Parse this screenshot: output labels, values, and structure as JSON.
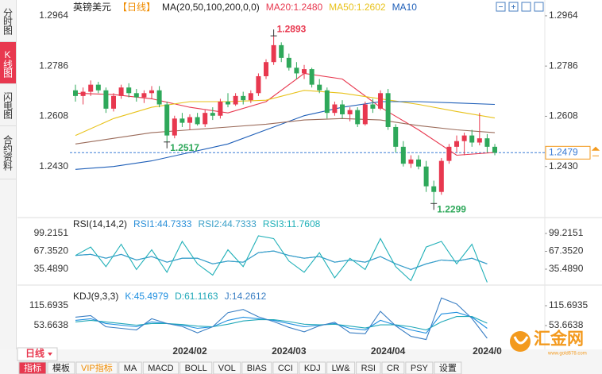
{
  "sidebar": [
    "分时图",
    "K线图",
    "闪电图",
    "合约资料"
  ],
  "chart_data": [
    {
      "type": "candlestick",
      "symbol": "英镑美元",
      "period": "【日线】",
      "indicator": "MA(20,50,100,200,0,0)",
      "up_color": "#e8384f",
      "down_color": "#2ea85a",
      "ohlc": [
        [
          1.27,
          1.272,
          1.266,
          1.268
        ],
        [
          1.268,
          1.271,
          1.265,
          1.2695
        ],
        [
          1.2695,
          1.2735,
          1.268,
          1.272
        ],
        [
          1.272,
          1.273,
          1.269,
          1.27
        ],
        [
          1.27,
          1.271,
          1.262,
          1.2635
        ],
        [
          1.2635,
          1.269,
          1.2625,
          1.268
        ],
        [
          1.268,
          1.272,
          1.267,
          1.271
        ],
        [
          1.271,
          1.2725,
          1.2675,
          1.269
        ],
        [
          1.269,
          1.2705,
          1.266,
          1.2675
        ],
        [
          1.2675,
          1.27,
          1.2655,
          1.269
        ],
        [
          1.269,
          1.2715,
          1.267,
          1.27
        ],
        [
          1.27,
          1.2715,
          1.264,
          1.265
        ],
        [
          1.265,
          1.266,
          1.2517,
          1.254
        ],
        [
          1.254,
          1.261,
          1.253,
          1.26
        ],
        [
          1.26,
          1.262,
          1.257,
          1.2585
        ],
        [
          1.2585,
          1.2615,
          1.256,
          1.2605
        ],
        [
          1.2605,
          1.262,
          1.2575,
          1.258
        ],
        [
          1.258,
          1.263,
          1.257,
          1.262
        ],
        [
          1.262,
          1.264,
          1.2595,
          1.261
        ],
        [
          1.261,
          1.267,
          1.26,
          1.266
        ],
        [
          1.266,
          1.269,
          1.264,
          1.265
        ],
        [
          1.265,
          1.269,
          1.2645,
          1.268
        ],
        [
          1.268,
          1.2695,
          1.265,
          1.2665
        ],
        [
          1.2665,
          1.27,
          1.2655,
          1.269
        ],
        [
          1.269,
          1.276,
          1.268,
          1.275
        ],
        [
          1.275,
          1.281,
          1.274,
          1.28
        ],
        [
          1.28,
          1.2893,
          1.279,
          1.286
        ],
        [
          1.286,
          1.287,
          1.28,
          1.2815
        ],
        [
          1.2815,
          1.283,
          1.277,
          1.278
        ],
        [
          1.278,
          1.28,
          1.274,
          1.276
        ],
        [
          1.276,
          1.279,
          1.274,
          1.2775
        ],
        [
          1.2775,
          1.278,
          1.271,
          1.272
        ],
        [
          1.272,
          1.274,
          1.269,
          1.27
        ],
        [
          1.27,
          1.271,
          1.26,
          1.262
        ],
        [
          1.262,
          1.266,
          1.261,
          1.265
        ],
        [
          1.265,
          1.2665,
          1.26,
          1.2615
        ],
        [
          1.2615,
          1.264,
          1.259,
          1.263
        ],
        [
          1.263,
          1.264,
          1.257,
          1.258
        ],
        [
          1.258,
          1.266,
          1.2575,
          1.265
        ],
        [
          1.265,
          1.267,
          1.262,
          1.2635
        ],
        [
          1.2635,
          1.27,
          1.263,
          1.269
        ],
        [
          1.269,
          1.2705,
          1.256,
          1.257
        ],
        [
          1.257,
          1.258,
          1.248,
          1.25
        ],
        [
          1.25,
          1.252,
          1.243,
          1.244
        ],
        [
          1.244,
          1.247,
          1.2425,
          1.2455
        ],
        [
          1.2455,
          1.247,
          1.242,
          1.243
        ],
        [
          1.243,
          1.245,
          1.234,
          1.236
        ],
        [
          1.236,
          1.238,
          1.2299,
          1.234
        ],
        [
          1.234,
          1.246,
          1.233,
          1.245
        ],
        [
          1.245,
          1.251,
          1.244,
          1.25
        ],
        [
          1.25,
          1.254,
          1.248,
          1.252
        ],
        [
          1.252,
          1.255,
          1.247,
          1.254
        ],
        [
          1.254,
          1.256,
          1.25,
          1.2515
        ],
        [
          1.2515,
          1.262,
          1.2505,
          1.253
        ],
        [
          1.253,
          1.2545,
          1.248,
          1.25
        ],
        [
          1.25,
          1.251,
          1.247,
          1.2479
        ]
      ],
      "ma_x": [
        0,
        5,
        10,
        15,
        20,
        25,
        30,
        35,
        40,
        45,
        50,
        55
      ],
      "series": [
        {
          "name": "MA20:1.2480",
          "color": "#e8384f",
          "values": [
            1.269,
            1.2685,
            1.267,
            1.264,
            1.262,
            1.266,
            1.276,
            1.274,
            1.264,
            1.256,
            1.247,
            1.248
          ]
        },
        {
          "name": "MA50:1.2602",
          "color": "#e8c21a",
          "values": [
            1.254,
            1.26,
            1.264,
            1.266,
            1.266,
            1.2665,
            1.27,
            1.269,
            1.267,
            1.265,
            1.2625,
            1.2602
          ]
        },
        {
          "name": "MA10",
          "color": "#1f5fb8",
          "values": [
            1.242,
            1.243,
            1.245,
            1.248,
            1.251,
            1.256,
            1.261,
            1.264,
            1.266,
            1.266,
            1.2655,
            1.265
          ]
        },
        {
          "color": "#9b6b5a",
          "values": [
            1.251,
            1.253,
            1.255,
            1.256,
            1.257,
            1.258,
            1.2595,
            1.26,
            1.2595,
            1.2575,
            1.256,
            1.255
          ]
        }
      ],
      "annotations": [
        1.2893,
        1.2517,
        1.2299
      ],
      "last": 1.2479,
      "xlim": [
        -0.73,
        61.56
      ],
      "ylim": [
        1.2252,
        1.302
      ],
      "yticks": [
        1.2964,
        1.2786,
        1.2608,
        {
          "value": 1.243,
          "label": "1.2430"
        }
      ]
    },
    {
      "type": "line",
      "title": "RSI(14,14,2)",
      "x": [
        0,
        2,
        4,
        6,
        8,
        10,
        12,
        14,
        16,
        18,
        20,
        22,
        24,
        26,
        28,
        30,
        32,
        34,
        36,
        38,
        40,
        42,
        44,
        46,
        48,
        50,
        52,
        54
      ],
      "series": [
        {
          "name": "RSI1:44.7333",
          "color": "#2a8fd8",
          "values": [
            60,
            62,
            55,
            62,
            52,
            58,
            48,
            55,
            55,
            45,
            50,
            48,
            65,
            68,
            60,
            55,
            58,
            48,
            52,
            48,
            58,
            45,
            35,
            45,
            52,
            50,
            55,
            45
          ]
        },
        {
          "name": "RSI2:44.7333",
          "color": "#3aa0c8",
          "values": [
            60,
            62,
            55,
            62,
            52,
            58,
            48,
            55,
            55,
            45,
            50,
            48,
            65,
            68,
            60,
            55,
            58,
            48,
            52,
            48,
            58,
            45,
            35,
            45,
            52,
            50,
            55,
            45
          ]
        },
        {
          "name": "RSI3:11.7608",
          "color": "#20b0b8",
          "values": [
            60,
            75,
            40,
            80,
            35,
            70,
            30,
            85,
            45,
            25,
            70,
            40,
            95,
            90,
            50,
            30,
            65,
            20,
            55,
            35,
            90,
            40,
            15,
            75,
            85,
            45,
            80,
            12
          ]
        }
      ],
      "xlim": [
        -0.73,
        61.56
      ],
      "ylim": [
        8.6,
        123.3
      ],
      "yticks": [
        99.2151,
        {
          "value": 67.352,
          "label": "67.3520"
        },
        {
          "value": 35.489,
          "label": "35.4890"
        }
      ]
    },
    {
      "type": "line",
      "title": "KDJ(9,3,3)",
      "x": [
        0,
        2,
        4,
        6,
        8,
        10,
        12,
        14,
        16,
        18,
        20,
        22,
        24,
        26,
        28,
        30,
        32,
        34,
        36,
        38,
        40,
        42,
        44,
        46,
        48,
        50,
        52,
        54
      ],
      "series": [
        {
          "name": "K:45.4979",
          "color": "#1f8fe0",
          "values": [
            70,
            75,
            60,
            55,
            50,
            65,
            60,
            55,
            45,
            50,
            70,
            80,
            75,
            70,
            60,
            50,
            55,
            60,
            45,
            40,
            70,
            55,
            40,
            30,
            90,
            95,
            80,
            45
          ]
        },
        {
          "name": "D:61.1163",
          "color": "#20a8b8",
          "values": [
            65,
            70,
            65,
            60,
            55,
            60,
            60,
            57,
            52,
            50,
            58,
            68,
            72,
            72,
            66,
            58,
            56,
            58,
            52,
            46,
            56,
            56,
            50,
            40,
            65,
            82,
            82,
            61
          ]
        },
        {
          "name": "J:14.2612",
          "color": "#3b7fc4",
          "values": [
            80,
            85,
            50,
            45,
            40,
            75,
            60,
            51,
            31,
            50,
            94,
            104,
            81,
            66,
            48,
            34,
            53,
            64,
            31,
            28,
            98,
            53,
            20,
            10,
            140,
            121,
            76,
            14
          ]
        }
      ],
      "xlim": [
        -0.73,
        61.56
      ],
      "ylim": [
        -20.8,
        172.8
      ],
      "yticks": [
        115.6935,
        53.6638
      ],
      "xticks": [
        {
          "value": 15,
          "label": "2024/02"
        },
        {
          "value": 28,
          "label": "2024/03"
        },
        {
          "value": 41,
          "label": "2024/04"
        },
        {
          "value": 54,
          "label": "2024/0"
        }
      ]
    }
  ],
  "period_tab": "日线",
  "toolbar": [
    "指标",
    "模板",
    "VIP指标",
    "MA",
    "MACD",
    "BOLL",
    "VOL",
    "BIAS",
    "CCI",
    "KDJ",
    "LW&",
    "RSI",
    "CR",
    "PSY",
    "设置"
  ],
  "logo": "汇金网",
  "logo_url": "www.gold678.com"
}
